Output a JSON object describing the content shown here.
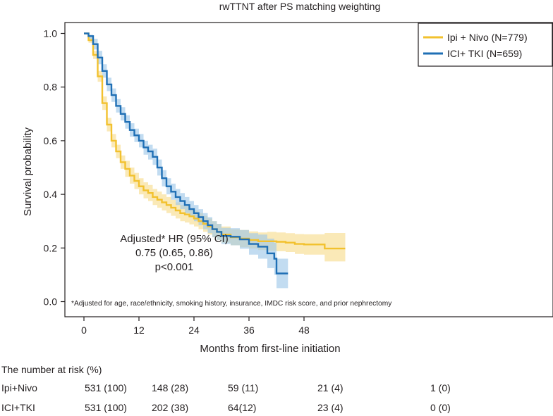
{
  "chart_data": {
    "type": "line",
    "title": "rwTTNT after PS matching weighting",
    "xlabel": "Months from first-line initiation",
    "ylabel": "Survival probability",
    "xlim": [
      0,
      60
    ],
    "ylim": [
      0,
      1.0
    ],
    "xticks": [
      "0",
      "12",
      "24",
      "36",
      "48"
    ],
    "yticks": [
      "0.0",
      "0.2",
      "0.4",
      "0.6",
      "0.8",
      "1.0"
    ],
    "legend_position": "top-right",
    "grid": false,
    "series": [
      {
        "name": "Ipi + Nivo (N=779)",
        "color": "#f2c12e",
        "band_color": "#f7dc8a",
        "points": [
          [
            0,
            1.0
          ],
          [
            1,
            0.975
          ],
          [
            2,
            0.92
          ],
          [
            3,
            0.84
          ],
          [
            4,
            0.74
          ],
          [
            5,
            0.66
          ],
          [
            6,
            0.6
          ],
          [
            7,
            0.56
          ],
          [
            8,
            0.52
          ],
          [
            9,
            0.495
          ],
          [
            10,
            0.47
          ],
          [
            11,
            0.45
          ],
          [
            12,
            0.43
          ],
          [
            13,
            0.415
          ],
          [
            14,
            0.405
          ],
          [
            15,
            0.39
          ],
          [
            16,
            0.38
          ],
          [
            17,
            0.37
          ],
          [
            18,
            0.36
          ],
          [
            19,
            0.35
          ],
          [
            20,
            0.34
          ],
          [
            21,
            0.33
          ],
          [
            22,
            0.325
          ],
          [
            23,
            0.318
          ],
          [
            24,
            0.31
          ],
          [
            25,
            0.3
          ],
          [
            26,
            0.29
          ],
          [
            27,
            0.28
          ],
          [
            28,
            0.27
          ],
          [
            29,
            0.26
          ],
          [
            30,
            0.25
          ],
          [
            32,
            0.24
          ],
          [
            34,
            0.235
          ],
          [
            36,
            0.23
          ],
          [
            38,
            0.225
          ],
          [
            40,
            0.225
          ],
          [
            42,
            0.223
          ],
          [
            44,
            0.22
          ],
          [
            46,
            0.215
          ],
          [
            48,
            0.213
          ],
          [
            52,
            0.213
          ],
          [
            52.5,
            0.198
          ],
          [
            56,
            0.198
          ],
          [
            57,
            0.198
          ]
        ],
        "lower": [
          [
            0,
            1.0
          ],
          [
            1,
            0.965
          ],
          [
            2,
            0.905
          ],
          [
            3,
            0.82
          ],
          [
            4,
            0.715
          ],
          [
            5,
            0.635
          ],
          [
            6,
            0.575
          ],
          [
            7,
            0.535
          ],
          [
            8,
            0.495
          ],
          [
            9,
            0.465
          ],
          [
            10,
            0.44
          ],
          [
            11,
            0.42
          ],
          [
            12,
            0.4
          ],
          [
            13,
            0.385
          ],
          [
            14,
            0.375
          ],
          [
            15,
            0.36
          ],
          [
            16,
            0.35
          ],
          [
            17,
            0.34
          ],
          [
            18,
            0.33
          ],
          [
            19,
            0.32
          ],
          [
            20,
            0.31
          ],
          [
            21,
            0.3
          ],
          [
            22,
            0.295
          ],
          [
            23,
            0.288
          ],
          [
            24,
            0.28
          ],
          [
            25,
            0.27
          ],
          [
            26,
            0.26
          ],
          [
            27,
            0.25
          ],
          [
            28,
            0.24
          ],
          [
            29,
            0.23
          ],
          [
            30,
            0.22
          ],
          [
            32,
            0.21
          ],
          [
            34,
            0.203
          ],
          [
            36,
            0.198
          ],
          [
            38,
            0.192
          ],
          [
            40,
            0.19
          ],
          [
            42,
            0.188
          ],
          [
            44,
            0.185
          ],
          [
            46,
            0.178
          ],
          [
            48,
            0.175
          ],
          [
            52,
            0.175
          ],
          [
            52.5,
            0.15
          ],
          [
            56,
            0.15
          ],
          [
            57,
            0.15
          ]
        ],
        "upper": [
          [
            0,
            1.0
          ],
          [
            1,
            0.985
          ],
          [
            2,
            0.935
          ],
          [
            3,
            0.86
          ],
          [
            4,
            0.765
          ],
          [
            5,
            0.685
          ],
          [
            6,
            0.625
          ],
          [
            7,
            0.585
          ],
          [
            8,
            0.545
          ],
          [
            9,
            0.525
          ],
          [
            10,
            0.5
          ],
          [
            11,
            0.48
          ],
          [
            12,
            0.46
          ],
          [
            13,
            0.445
          ],
          [
            14,
            0.435
          ],
          [
            15,
            0.42
          ],
          [
            16,
            0.41
          ],
          [
            17,
            0.4
          ],
          [
            18,
            0.39
          ],
          [
            19,
            0.38
          ],
          [
            20,
            0.37
          ],
          [
            21,
            0.36
          ],
          [
            22,
            0.355
          ],
          [
            23,
            0.348
          ],
          [
            24,
            0.34
          ],
          [
            25,
            0.33
          ],
          [
            26,
            0.32
          ],
          [
            27,
            0.31
          ],
          [
            28,
            0.3
          ],
          [
            29,
            0.29
          ],
          [
            30,
            0.28
          ],
          [
            32,
            0.27
          ],
          [
            34,
            0.267
          ],
          [
            36,
            0.262
          ],
          [
            38,
            0.258
          ],
          [
            40,
            0.26
          ],
          [
            42,
            0.258
          ],
          [
            44,
            0.255
          ],
          [
            46,
            0.252
          ],
          [
            48,
            0.251
          ],
          [
            52,
            0.251
          ],
          [
            52.5,
            0.256
          ],
          [
            56,
            0.256
          ],
          [
            57,
            0.256
          ]
        ]
      },
      {
        "name": "ICI+ TKI (N=659)",
        "color": "#1f6fb5",
        "band_color": "#9cc6e8",
        "points": [
          [
            0,
            1.0
          ],
          [
            1,
            0.99
          ],
          [
            2,
            0.96
          ],
          [
            3,
            0.91
          ],
          [
            4,
            0.86
          ],
          [
            5,
            0.81
          ],
          [
            6,
            0.77
          ],
          [
            7,
            0.73
          ],
          [
            8,
            0.7
          ],
          [
            9,
            0.67
          ],
          [
            10,
            0.64
          ],
          [
            11,
            0.62
          ],
          [
            12,
            0.6
          ],
          [
            13,
            0.575
          ],
          [
            14,
            0.56
          ],
          [
            15,
            0.54
          ],
          [
            16,
            0.5
          ],
          [
            17,
            0.46
          ],
          [
            18,
            0.43
          ],
          [
            19,
            0.41
          ],
          [
            20,
            0.39
          ],
          [
            21,
            0.375
          ],
          [
            22,
            0.36
          ],
          [
            23,
            0.345
          ],
          [
            24,
            0.33
          ],
          [
            25,
            0.315
          ],
          [
            26,
            0.3
          ],
          [
            27,
            0.285
          ],
          [
            28,
            0.27
          ],
          [
            29,
            0.26
          ],
          [
            30,
            0.245
          ],
          [
            32,
            0.242
          ],
          [
            34,
            0.232
          ],
          [
            36,
            0.215
          ],
          [
            38,
            0.205
          ],
          [
            40,
            0.18
          ],
          [
            41.5,
            0.16
          ],
          [
            42,
            0.105
          ],
          [
            44.5,
            0.105
          ]
        ],
        "lower": [
          [
            0,
            1.0
          ],
          [
            1,
            0.98
          ],
          [
            2,
            0.94
          ],
          [
            3,
            0.885
          ],
          [
            4,
            0.835
          ],
          [
            5,
            0.785
          ],
          [
            6,
            0.745
          ],
          [
            7,
            0.705
          ],
          [
            8,
            0.675
          ],
          [
            9,
            0.645
          ],
          [
            10,
            0.615
          ],
          [
            11,
            0.595
          ],
          [
            12,
            0.575
          ],
          [
            13,
            0.548
          ],
          [
            14,
            0.53
          ],
          [
            15,
            0.51
          ],
          [
            16,
            0.47
          ],
          [
            17,
            0.43
          ],
          [
            18,
            0.4
          ],
          [
            19,
            0.38
          ],
          [
            20,
            0.36
          ],
          [
            21,
            0.345
          ],
          [
            22,
            0.33
          ],
          [
            23,
            0.315
          ],
          [
            24,
            0.3
          ],
          [
            25,
            0.285
          ],
          [
            26,
            0.27
          ],
          [
            27,
            0.255
          ],
          [
            28,
            0.24
          ],
          [
            29,
            0.23
          ],
          [
            30,
            0.215
          ],
          [
            32,
            0.21
          ],
          [
            34,
            0.197
          ],
          [
            36,
            0.175
          ],
          [
            38,
            0.16
          ],
          [
            40,
            0.125
          ],
          [
            41.5,
            0.1
          ],
          [
            42,
            0.05
          ],
          [
            44.5,
            0.05
          ]
        ],
        "upper": [
          [
            0,
            1.0
          ],
          [
            1,
            0.995
          ],
          [
            2,
            0.98
          ],
          [
            3,
            0.935
          ],
          [
            4,
            0.885
          ],
          [
            5,
            0.835
          ],
          [
            6,
            0.795
          ],
          [
            7,
            0.755
          ],
          [
            8,
            0.725
          ],
          [
            9,
            0.695
          ],
          [
            10,
            0.665
          ],
          [
            11,
            0.645
          ],
          [
            12,
            0.625
          ],
          [
            13,
            0.6
          ],
          [
            14,
            0.585
          ],
          [
            15,
            0.57
          ],
          [
            16,
            0.53
          ],
          [
            17,
            0.49
          ],
          [
            18,
            0.46
          ],
          [
            19,
            0.44
          ],
          [
            20,
            0.42
          ],
          [
            21,
            0.405
          ],
          [
            22,
            0.39
          ],
          [
            23,
            0.375
          ],
          [
            24,
            0.36
          ],
          [
            25,
            0.345
          ],
          [
            26,
            0.33
          ],
          [
            27,
            0.315
          ],
          [
            28,
            0.3
          ],
          [
            29,
            0.29
          ],
          [
            30,
            0.275
          ],
          [
            32,
            0.274
          ],
          [
            34,
            0.267
          ],
          [
            36,
            0.255
          ],
          [
            38,
            0.25
          ],
          [
            40,
            0.235
          ],
          [
            41.5,
            0.22
          ],
          [
            42,
            0.16
          ],
          [
            44.5,
            0.16
          ]
        ]
      }
    ],
    "annotations": {
      "hr_title": "Adjusted* HR (95% CI)",
      "hr_value": "0.75 (0.65, 0.86)",
      "p_value": "p<0.001",
      "footnote": "*Adjusted for age, race/ethnicity, smoking history, insurance, IMDC risk score, and prior nephrectomy"
    }
  },
  "risk_table": {
    "title": "The number at risk (%)",
    "rows": [
      {
        "label": "Ipi+Nivo",
        "values": [
          "531 (100)",
          "148 (28)",
          "59 (11)",
          "21 (4)",
          "1 (0)"
        ]
      },
      {
        "label": "ICI+TKI",
        "values": [
          "531 (100)",
          "202 (38)",
          "64(12)",
          "23 (4)",
          "0 (0)"
        ]
      }
    ]
  }
}
